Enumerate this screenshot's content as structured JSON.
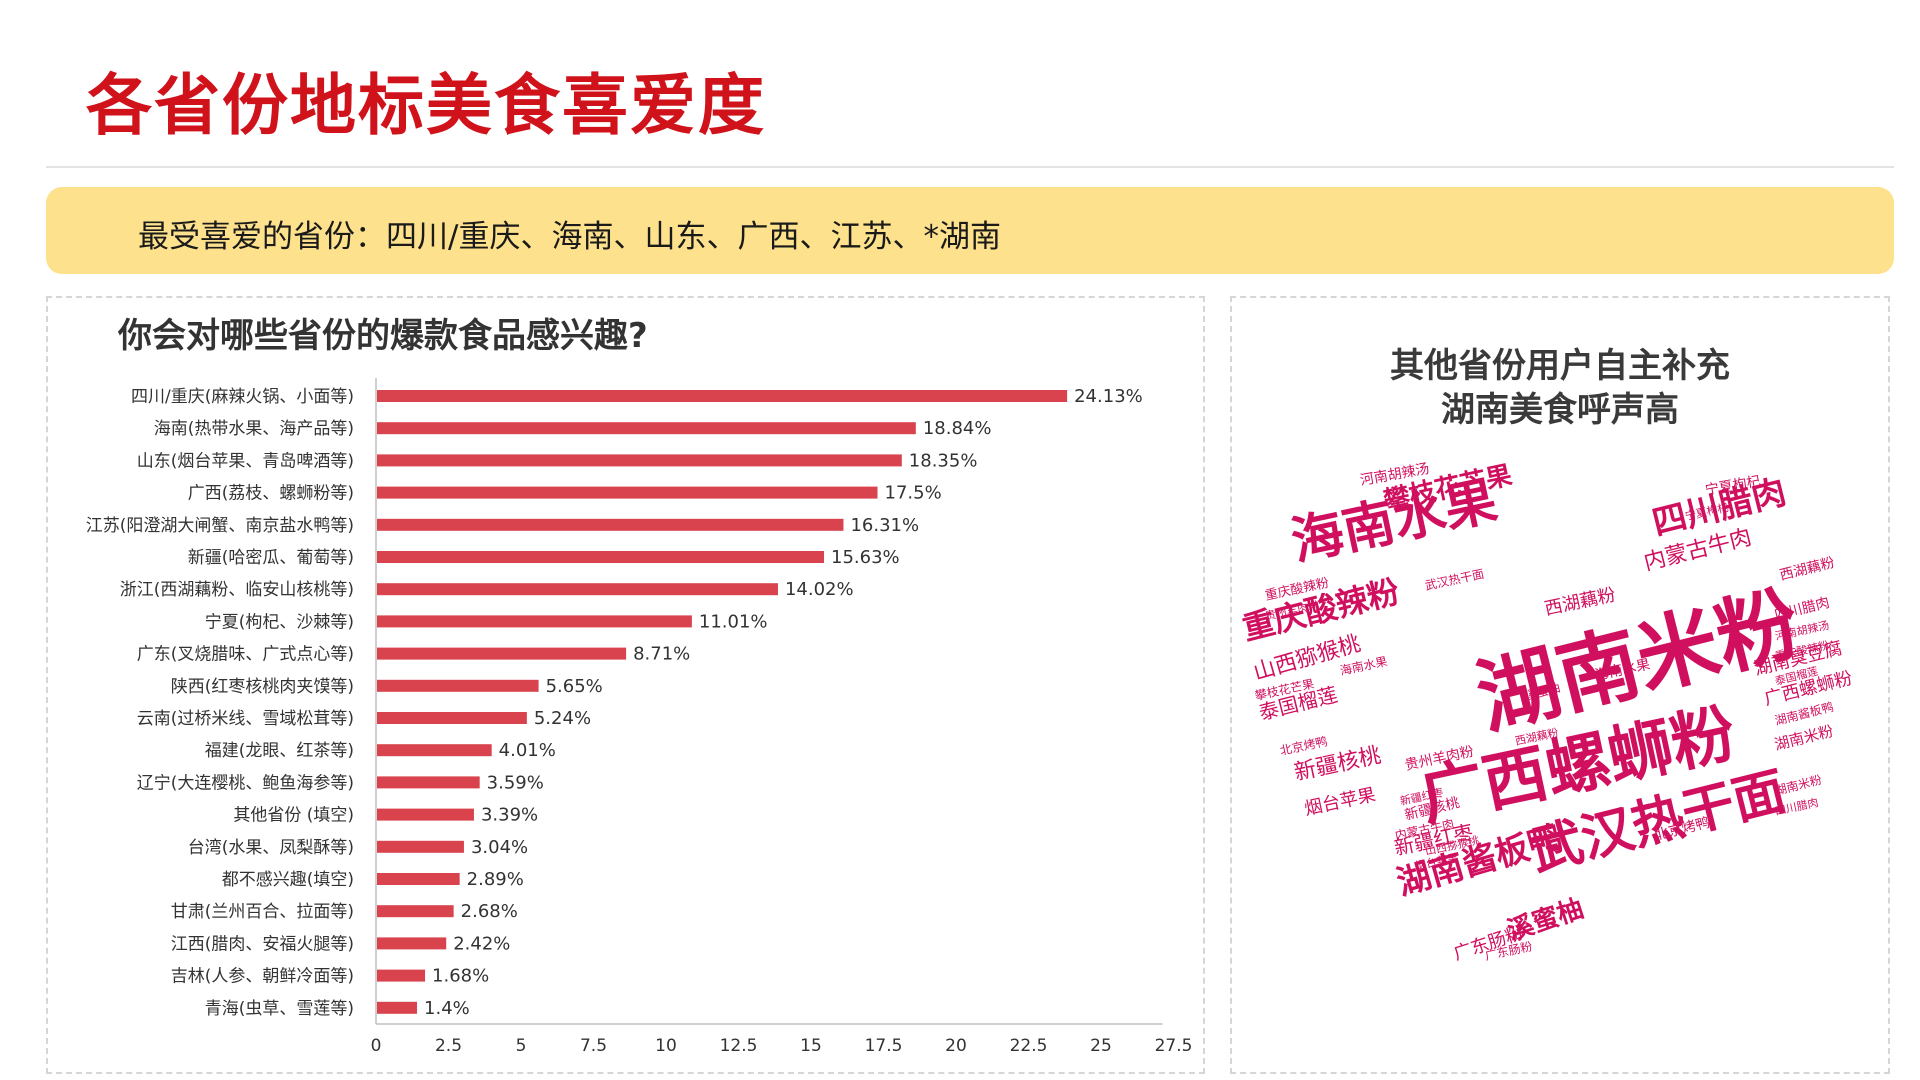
{
  "page": {
    "title": "各省份地标美食喜爱度",
    "banner": "最受喜爱的省份：四川/重庆、海南、山东、广西、江苏、*湖南"
  },
  "chart_data": {
    "type": "bar",
    "orientation": "horizontal",
    "title": "你会对哪些省份的爆款食品感兴趣?",
    "categories": [
      "四川/重庆(麻辣火锅、小面等)",
      "海南(热带水果、海产品等)",
      "山东(烟台苹果、青岛啤酒等)",
      "广西(荔枝、螺蛳粉等)",
      "江苏(阳澄湖大闸蟹、南京盐水鸭等)",
      "新疆(哈密瓜、葡萄等)",
      "浙江(西湖藕粉、临安山核桃等)",
      "宁夏(枸杞、沙棘等)",
      "广东(叉烧腊味、广式点心等)",
      "陕西(红枣核桃肉夹馍等)",
      "云南(过桥米线、雪域松茸等)",
      "福建(龙眼、红茶等)",
      "辽宁(大连樱桃、鲍鱼海参等)",
      "其他省份 (填空)",
      "台湾(水果、凤梨酥等)",
      "都不感兴趣(填空)",
      "甘肃(兰州百合、拉面等)",
      "江西(腊肉、安福火腿等)",
      "吉林(人参、朝鲜冷面等)",
      "青海(虫草、雪莲等)"
    ],
    "values": [
      24.13,
      18.84,
      18.35,
      17.5,
      16.31,
      15.63,
      14.02,
      11.01,
      8.71,
      5.65,
      5.24,
      4.01,
      3.59,
      3.39,
      3.04,
      2.89,
      2.68,
      2.42,
      1.68,
      1.4
    ],
    "value_labels": [
      "24.13%",
      "18.84%",
      "18.35%",
      "17.5%",
      "16.31%",
      "15.63%",
      "14.02%",
      "11.01%",
      "8.71%",
      "5.65%",
      "5.24%",
      "4.01%",
      "3.59%",
      "3.39%",
      "3.04%",
      "2.89%",
      "2.68%",
      "2.42%",
      "1.68%",
      "1.4%"
    ],
    "xticks": [
      "0",
      "2.5",
      "5",
      "7.5",
      "10",
      "12.5",
      "15",
      "17.5",
      "20",
      "22.5",
      "25",
      "27.5"
    ],
    "xlim": [
      0,
      27.5
    ],
    "bar_color": "#d9434e",
    "grid": false
  },
  "wordcloud": {
    "title_line1": "其他省份用户自主补充",
    "title_line2": "湖南美食呼声高",
    "color": "#d0105f",
    "words": [
      {
        "text": "湖南米粉",
        "weight": 100
      },
      {
        "text": "广西螺蛳粉",
        "weight": 80
      },
      {
        "text": "武汉热干面",
        "weight": 66
      },
      {
        "text": "海南水果",
        "weight": 60
      },
      {
        "text": "湖南酱板鸭",
        "weight": 44
      },
      {
        "text": "重庆酸辣粉",
        "weight": 42
      },
      {
        "text": "四川腊肉",
        "weight": 42
      },
      {
        "text": "攀枝花芒果",
        "weight": 34
      },
      {
        "text": "内蒙古牛肉",
        "weight": 30
      },
      {
        "text": "山西猕猴桃",
        "weight": 30
      },
      {
        "text": "溪蜜柚",
        "weight": 30
      },
      {
        "text": "新疆核桃",
        "weight": 27
      },
      {
        "text": "西湖藕粉",
        "weight": 24
      },
      {
        "text": "泰国榴莲",
        "weight": 24
      },
      {
        "text": "湖南臭豆腐",
        "weight": 22
      },
      {
        "text": "广西螺蛳粉",
        "weight": 21
      },
      {
        "text": "新疆红枣",
        "weight": 24
      },
      {
        "text": "广东肠粉",
        "weight": 22
      },
      {
        "text": "烟台苹果",
        "weight": 22
      },
      {
        "text": "海南水果",
        "weight": 20
      },
      {
        "text": "湖南米粉",
        "weight": 20
      },
      {
        "text": "北京烤鸭",
        "weight": 19
      },
      {
        "text": "河南胡辣汤",
        "weight": 18
      },
      {
        "text": "贵州羊肉粉",
        "weight": 18
      },
      {
        "text": "西湖藕粉",
        "weight": 17
      },
      {
        "text": "新疆核桃",
        "weight": 16
      },
      {
        "text": "宁夏枸杞",
        "weight": 16
      },
      {
        "text": "重庆酸辣粉",
        "weight": 15
      },
      {
        "text": "湖南酱板鸭",
        "weight": 15
      },
      {
        "text": "四川腊肉",
        "weight": 15
      },
      {
        "text": "攀枝花芒果",
        "weight": 14
      },
      {
        "text": "北京烤鸭",
        "weight": 14
      },
      {
        "text": "内蒙古牛肉",
        "weight": 13
      },
      {
        "text": "武汉热干面",
        "weight": 13
      },
      {
        "text": "海南水果",
        "weight": 12
      },
      {
        "text": "广东肠粉",
        "weight": 12
      },
      {
        "text": "山西猕猴桃",
        "weight": 12
      },
      {
        "text": "西湖藕粉",
        "weight": 12
      },
      {
        "text": "溪蜜柚",
        "weight": 12
      },
      {
        "text": "泰国榴莲",
        "weight": 12
      },
      {
        "text": "湖南米粉",
        "weight": 12
      },
      {
        "text": "新疆红枣",
        "weight": 11
      },
      {
        "text": "宁夏枸杞",
        "weight": 11
      },
      {
        "text": "贵州羊肉粉",
        "weight": 11
      },
      {
        "text": "河南胡辣汤",
        "weight": 11
      },
      {
        "text": "四川腊肉",
        "weight": 11
      },
      {
        "text": "烟台苹果",
        "weight": 11
      },
      {
        "text": "重庆酸辣粉",
        "weight": 11
      }
    ]
  }
}
